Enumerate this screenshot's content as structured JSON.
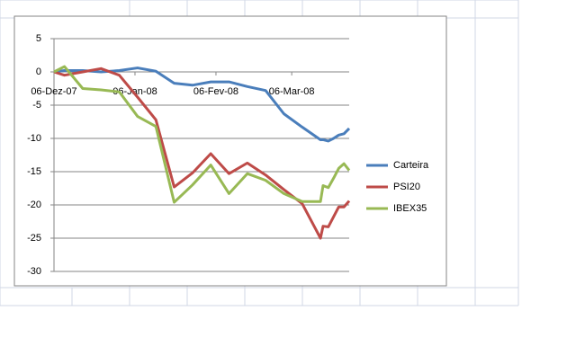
{
  "chart_data": {
    "type": "line",
    "x": [
      0,
      4,
      11,
      18,
      25,
      32,
      39,
      46,
      53,
      60,
      67,
      74,
      81,
      88,
      95,
      102,
      103,
      105,
      107,
      109,
      111,
      113
    ],
    "xlim": [
      0,
      113
    ],
    "xticks": [
      {
        "value": 0,
        "label": "06-Dez-07"
      },
      {
        "value": 31,
        "label": "06-Jan-08"
      },
      {
        "value": 62,
        "label": "06-Fev-08"
      },
      {
        "value": 91,
        "label": "06-Mar-08"
      }
    ],
    "ylim": [
      -30,
      5
    ],
    "yticks": [
      -30,
      -25,
      -20,
      -15,
      -10,
      -5,
      0,
      5
    ],
    "grid": true,
    "legend": "right",
    "series": [
      {
        "name": "Carteira",
        "color": "#4a7ebb",
        "values": [
          0,
          0.2,
          0.2,
          0,
          0.2,
          0.6,
          0.1,
          -1.7,
          -2,
          -1.5,
          -1.5,
          -2.2,
          -2.8,
          -6.3,
          -8.3,
          -10.2,
          -10.2,
          -10.4,
          -10,
          -9.5,
          -9.3,
          -8.5
        ]
      },
      {
        "name": "PSI20",
        "color": "#be4b48",
        "values": [
          0,
          -0.5,
          0,
          0.5,
          -0.5,
          -3.8,
          -7.2,
          -17.3,
          -15.2,
          -12.3,
          -15.3,
          -13.7,
          -15.5,
          -17.7,
          -19.8,
          -25,
          -23.2,
          -23.3,
          -21.8,
          -20.3,
          -20.3,
          -19.4
        ]
      },
      {
        "name": "IBEX35",
        "color": "#98b954",
        "values": [
          0,
          0.8,
          -2.5,
          -2.7,
          -3,
          -6.7,
          -8.2,
          -19.6,
          -17,
          -14,
          -18.3,
          -15.3,
          -16.3,
          -18.3,
          -19.5,
          -19.5,
          -17.1,
          -17.4,
          -16,
          -14.5,
          -13.8,
          -14.8
        ]
      }
    ]
  }
}
